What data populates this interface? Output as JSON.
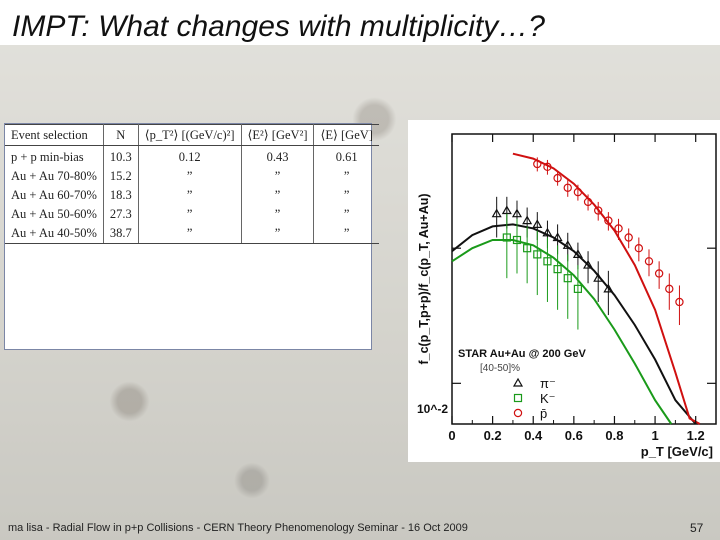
{
  "slide": {
    "title": "IMPT: What changes with multiplicity…?",
    "footer": "ma lisa - Radial Flow in p+p Collisions - CERN Theory Phenomenology Seminar - 16 Oct 2009",
    "page_number": "57"
  },
  "table": {
    "headers": [
      "Event selection",
      "N",
      "⟨p_T²⟩ [(GeV/c)²]",
      "⟨E²⟩ [GeV²]",
      "⟨E⟩ [GeV]"
    ],
    "rows": [
      [
        "p + p min-bias",
        "10.3",
        "0.12",
        "0.43",
        "0.61"
      ],
      [
        "Au + Au 70-80%",
        "15.2",
        "”",
        "”",
        "”"
      ],
      [
        "Au + Au 60-70%",
        "18.3",
        "”",
        "”",
        "”"
      ],
      [
        "Au + Au 50-60%",
        "27.3",
        "”",
        "”",
        "”"
      ],
      [
        "Au + Au 40-50%",
        "38.7",
        "”",
        "”",
        "”"
      ]
    ]
  },
  "chart_data": {
    "type": "scatter",
    "ylabel": "f_c(p_T,p+p)/f_c(p_T, Au+Au)",
    "xlabel": "p_T [GeV/c]",
    "xlim": [
      0,
      1.3
    ],
    "ylog": true,
    "y_tick_label": "10^-2",
    "y_tick_value": 0.01,
    "x_ticks": [
      "0",
      "0.2",
      "0.4",
      "0.6",
      "0.8",
      "1",
      "1.2"
    ],
    "legend": {
      "title": "STAR Au+Au @ 200 GeV",
      "subtitle": "[40-50]%",
      "entries": [
        {
          "marker": "triangle",
          "label": "π⁻",
          "color": "#111111"
        },
        {
          "marker": "square",
          "label": "K⁻",
          "color": "#1a9a1a"
        },
        {
          "marker": "circle",
          "label": "p̄",
          "color": "#d01010"
        }
      ]
    },
    "series": [
      {
        "name": "π⁻",
        "color": "#111111",
        "marker": "triangle",
        "x": [
          0.22,
          0.27,
          0.32,
          0.37,
          0.42,
          0.47,
          0.52,
          0.57,
          0.62,
          0.67,
          0.72,
          0.77
        ],
        "y": [
          0.18,
          0.19,
          0.18,
          0.16,
          0.15,
          0.13,
          0.12,
          0.105,
          0.09,
          0.075,
          0.06,
          0.05
        ],
        "err": [
          0.06,
          0.05,
          0.045,
          0.04,
          0.035,
          0.03,
          0.03,
          0.025,
          0.02,
          0.02,
          0.02,
          0.018
        ],
        "curve_x": [
          0.0,
          0.1,
          0.2,
          0.3,
          0.4,
          0.5,
          0.6,
          0.7,
          0.8,
          0.9,
          1.0,
          1.1,
          1.2
        ],
        "curve_y": [
          0.095,
          0.125,
          0.145,
          0.15,
          0.14,
          0.12,
          0.095,
          0.068,
          0.045,
          0.027,
          0.015,
          0.0075,
          0.0035
        ]
      },
      {
        "name": "K⁻",
        "color": "#1a9a1a",
        "marker": "square",
        "x": [
          0.27,
          0.32,
          0.37,
          0.42,
          0.47,
          0.52,
          0.57,
          0.62
        ],
        "y": [
          0.12,
          0.115,
          0.1,
          0.09,
          0.08,
          0.07,
          0.06,
          0.05
        ],
        "err": [
          0.06,
          0.05,
          0.045,
          0.045,
          0.04,
          0.035,
          0.03,
          0.025
        ],
        "curve_x": [
          0.0,
          0.1,
          0.2,
          0.3,
          0.4,
          0.5,
          0.6,
          0.7,
          0.8,
          0.9,
          1.0,
          1.08
        ],
        "curve_y": [
          0.08,
          0.1,
          0.115,
          0.115,
          0.105,
          0.085,
          0.063,
          0.042,
          0.025,
          0.014,
          0.0075,
          0.0045
        ]
      },
      {
        "name": "p̄",
        "color": "#d01010",
        "marker": "circle",
        "x": [
          0.42,
          0.47,
          0.52,
          0.57,
          0.62,
          0.67,
          0.72,
          0.77,
          0.82,
          0.87,
          0.92,
          0.97,
          1.02,
          1.07,
          1.12
        ],
        "y": [
          0.42,
          0.4,
          0.33,
          0.28,
          0.26,
          0.22,
          0.19,
          0.16,
          0.14,
          0.12,
          0.1,
          0.08,
          0.065,
          0.05,
          0.04
        ],
        "err": [
          0.05,
          0.05,
          0.04,
          0.04,
          0.035,
          0.03,
          0.03,
          0.025,
          0.025,
          0.02,
          0.02,
          0.018,
          0.015,
          0.015,
          0.013
        ],
        "curve_x": [
          0.3,
          0.4,
          0.5,
          0.6,
          0.7,
          0.8,
          0.9,
          1.0,
          1.1,
          1.17,
          1.22
        ],
        "curve_y": [
          0.5,
          0.46,
          0.39,
          0.3,
          0.21,
          0.135,
          0.075,
          0.035,
          0.012,
          0.0055,
          0.0035
        ]
      }
    ]
  }
}
